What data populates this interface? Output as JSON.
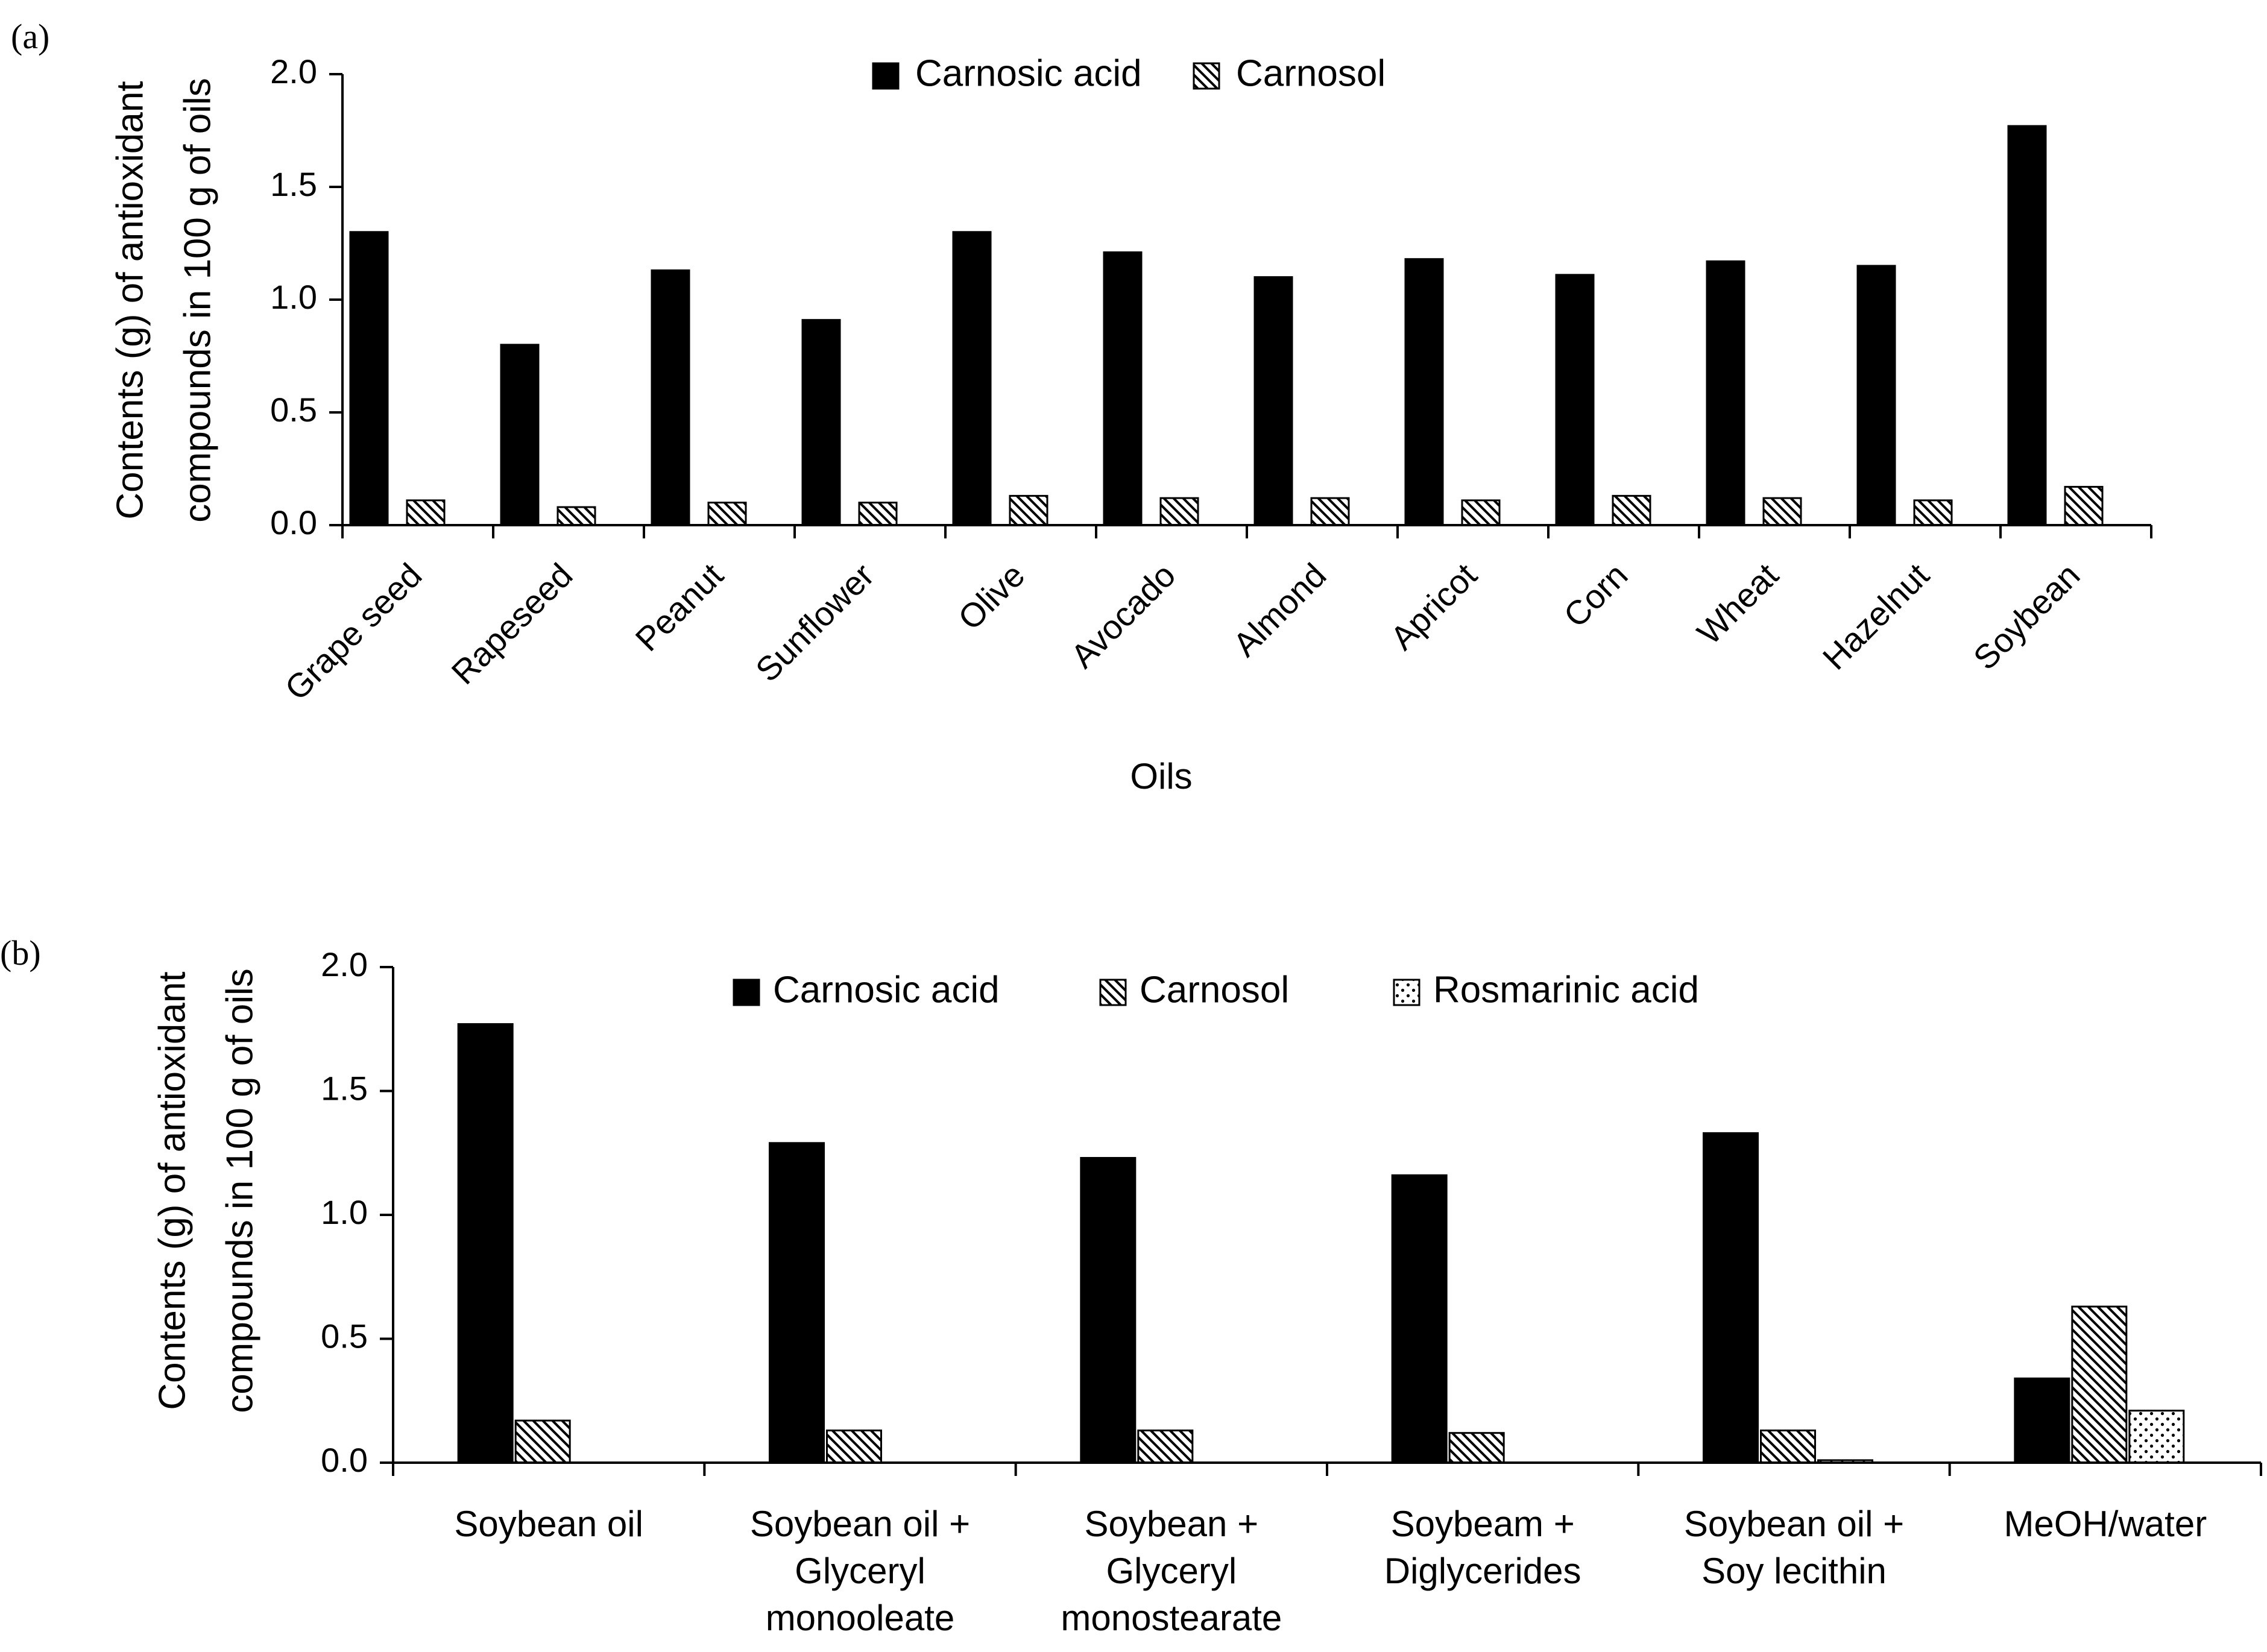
{
  "chart_data": [
    {
      "panel_label": "(a)",
      "type": "bar",
      "title": "",
      "xlabel": "Oils",
      "ylabel_lines": [
        "Contents (g) of antioxidant",
        "compounds  in 100 g of oils"
      ],
      "ylim": [
        0,
        2.0
      ],
      "yticks": [
        "0.0",
        "0.5",
        "1.0",
        "1.5",
        "2.0"
      ],
      "legend_position": "top-center",
      "categories": [
        "Grape seed",
        "Rapeseed",
        "Peanut",
        "Sunflower",
        "Olive",
        "Avocado",
        "Almond",
        "Apricot",
        "Corn",
        "Wheat",
        "Hazelnut",
        "Soybean"
      ],
      "series": [
        {
          "name": "Carnosic acid",
          "pattern": "solid",
          "values": [
            1.3,
            0.8,
            1.13,
            0.91,
            1.3,
            1.21,
            1.1,
            1.18,
            1.11,
            1.17,
            1.15,
            1.77
          ]
        },
        {
          "name": "Carnosol",
          "pattern": "hatch",
          "values": [
            0.11,
            0.08,
            0.1,
            0.1,
            0.13,
            0.12,
            0.12,
            0.11,
            0.13,
            0.12,
            0.11,
            0.17
          ]
        }
      ]
    },
    {
      "panel_label": "(b)",
      "type": "bar",
      "title": "",
      "xlabel": "",
      "ylabel_lines": [
        "Contents (g) of antioxidant",
        "compounds  in 100 g of oils"
      ],
      "ylim": [
        0,
        2.0
      ],
      "yticks": [
        "0.0",
        "0.5",
        "1.0",
        "1.5",
        "2.0"
      ],
      "legend_position": "top-center",
      "categories": [
        [
          "Soybean oil"
        ],
        [
          "Soybean oil +",
          "Glyceryl",
          "monooleate"
        ],
        [
          "Soybean +",
          "Glyceryl",
          "monostearate"
        ],
        [
          "Soybeam +",
          "Diglycerides"
        ],
        [
          "Soybean oil +",
          "Soy lecithin"
        ],
        [
          "MeOH/water"
        ]
      ],
      "series": [
        {
          "name": "Carnosic acid",
          "pattern": "solid",
          "values": [
            1.77,
            1.29,
            1.23,
            1.16,
            1.33,
            0.34
          ]
        },
        {
          "name": "Carnosol",
          "pattern": "hatch",
          "values": [
            0.17,
            0.13,
            0.13,
            0.12,
            0.13,
            0.63
          ]
        },
        {
          "name": "Rosmarinic acid",
          "pattern": "dots",
          "values": [
            0.0,
            0.0,
            0.0,
            0.0,
            0.01,
            0.21
          ]
        }
      ]
    }
  ]
}
